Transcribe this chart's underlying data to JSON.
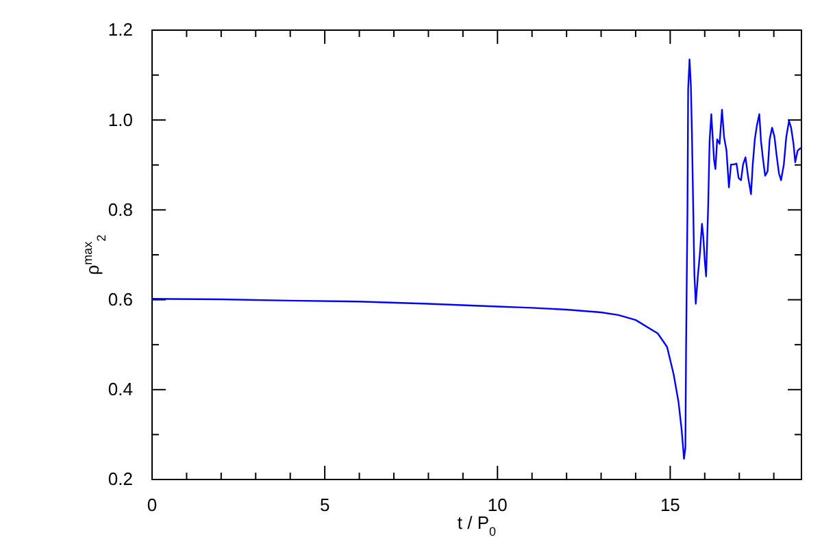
{
  "chart_data": {
    "type": "line",
    "xlabel": "t / P$_{0}$",
    "ylabel": "ρ$^{max}$$_{2}$",
    "xlim": [
      0,
      18.8
    ],
    "ylim": [
      0.2,
      1.2
    ],
    "xticks": [
      0,
      {
        "value": 1,
        "label": null
      },
      {
        "value": 2,
        "label": null
      },
      {
        "value": 3,
        "label": null
      },
      {
        "value": 4,
        "label": null
      },
      5,
      {
        "value": 6,
        "label": null
      },
      {
        "value": 7,
        "label": null
      },
      {
        "value": 8,
        "label": null
      },
      {
        "value": 9,
        "label": null
      },
      10,
      {
        "value": 11,
        "label": null
      },
      {
        "value": 12,
        "label": null
      },
      {
        "value": 13,
        "label": null
      },
      {
        "value": 14,
        "label": null
      },
      15,
      {
        "value": 16,
        "label": null
      },
      {
        "value": 17,
        "label": null
      },
      {
        "value": 18,
        "label": null
      }
    ],
    "yticks": [
      {
        "value": 0.2,
        "label": "0.2"
      },
      {
        "value": 0.3,
        "label": null
      },
      {
        "value": 0.4,
        "label": "0.4"
      },
      {
        "value": 0.5,
        "label": null
      },
      {
        "value": 0.6,
        "label": "0.6"
      },
      {
        "value": 0.7,
        "label": null
      },
      {
        "value": 0.8,
        "label": "0.8"
      },
      {
        "value": 0.9,
        "label": null
      },
      {
        "value": 1.0,
        "label": "1.0"
      },
      {
        "value": 1.1,
        "label": null
      },
      {
        "value": 1.2,
        "label": "1.2"
      }
    ],
    "grid": false,
    "marker": "none",
    "line_style": "solid",
    "series": [
      {
        "color": "#0000ff",
        "x": [
          0,
          2,
          4,
          6,
          8,
          10,
          11,
          12,
          13,
          13.5,
          14,
          14.64,
          14.91,
          15.1,
          15.24,
          15.33,
          15.4,
          15.44,
          15.46,
          15.5,
          15.52,
          15.56,
          15.6,
          15.63,
          15.7,
          15.74,
          15.8,
          15.86,
          15.92,
          15.96,
          16.0,
          16.04,
          16.1,
          16.14,
          16.19,
          16.23,
          16.27,
          16.31,
          16.36,
          16.43,
          16.5,
          16.56,
          16.63,
          16.7,
          16.76,
          16.83,
          16.92,
          16.98,
          17.05,
          17.11,
          17.18,
          17.26,
          17.34,
          17.39,
          17.45,
          17.51,
          17.58,
          17.63,
          17.69,
          17.75,
          17.82,
          17.88,
          17.95,
          18.02,
          18.08,
          18.15,
          18.21,
          18.29,
          18.36,
          18.44,
          18.5,
          18.57,
          18.62,
          18.69,
          18.77
        ],
        "values": [
          0.602,
          0.601,
          0.598,
          0.596,
          0.591,
          0.585,
          0.582,
          0.578,
          0.572,
          0.566,
          0.555,
          0.525,
          0.495,
          0.434,
          0.373,
          0.312,
          0.246,
          0.271,
          0.495,
          0.8,
          1.069,
          1.135,
          1.074,
          0.967,
          0.657,
          0.591,
          0.652,
          0.703,
          0.769,
          0.739,
          0.688,
          0.652,
          0.81,
          0.952,
          1.013,
          0.962,
          0.911,
          0.891,
          0.957,
          0.947,
          1.023,
          0.962,
          0.932,
          0.85,
          0.901,
          0.901,
          0.903,
          0.871,
          0.866,
          0.901,
          0.917,
          0.871,
          0.835,
          0.901,
          0.957,
          0.988,
          1.013,
          0.952,
          0.911,
          0.876,
          0.886,
          0.957,
          0.983,
          0.962,
          0.922,
          0.881,
          0.866,
          0.901,
          0.962,
          0.998,
          0.983,
          0.947,
          0.906,
          0.932,
          0.937
        ]
      }
    ]
  }
}
